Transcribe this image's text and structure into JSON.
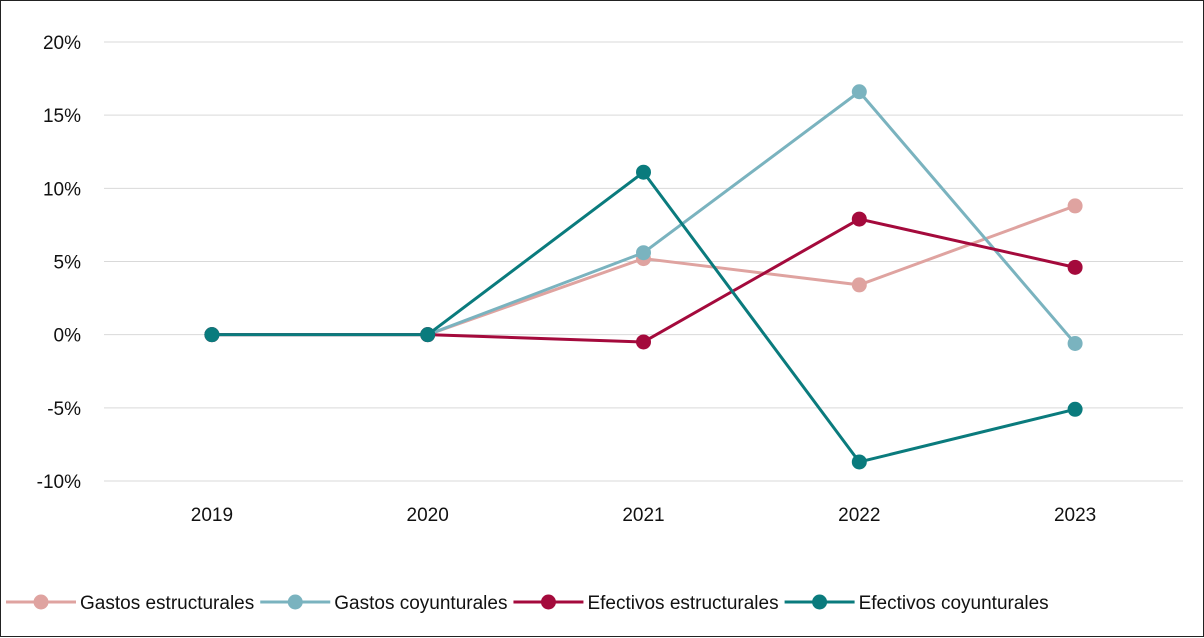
{
  "chart_data": {
    "type": "line",
    "categories": [
      "2019",
      "2020",
      "2021",
      "2022",
      "2023"
    ],
    "ylim": [
      -10,
      20
    ],
    "y_ticks": [
      20,
      15,
      10,
      5,
      0,
      -5,
      -10
    ],
    "y_tick_labels": [
      "20%",
      "15%",
      "10%",
      "5%",
      "0%",
      "-5%",
      "-10%"
    ],
    "grid": "horizontal",
    "legend_position": "bottom",
    "series": [
      {
        "name": "Gastos estructurales",
        "color": "#DFA3A0",
        "values": [
          0,
          0,
          5.2,
          3.4,
          8.8
        ]
      },
      {
        "name": "Gastos coyunturales",
        "color": "#7AB3BF",
        "values": [
          0,
          0,
          5.6,
          16.6,
          -0.6
        ]
      },
      {
        "name": "Efectivos estructurales",
        "color": "#A40A3C",
        "values": [
          0,
          0,
          -0.5,
          7.9,
          4.6
        ]
      },
      {
        "name": "Efectivos coyunturales",
        "color": "#0A7B7D",
        "values": [
          0,
          0,
          11.1,
          -8.7,
          -5.1
        ]
      }
    ]
  }
}
